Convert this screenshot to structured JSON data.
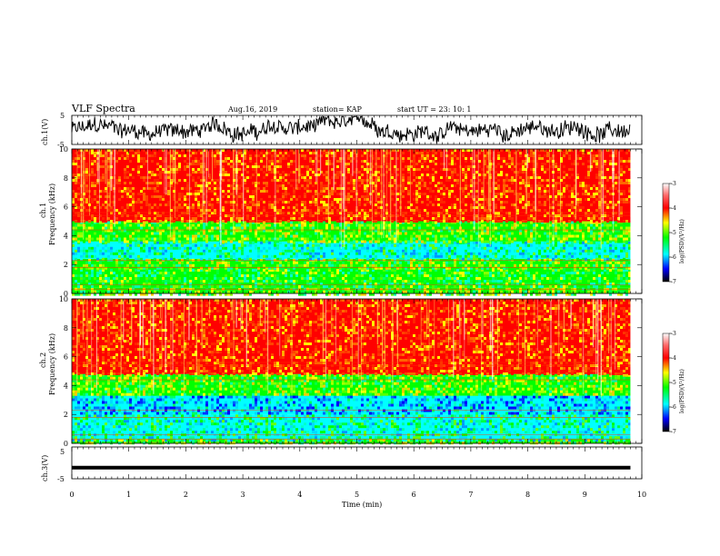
{
  "header": {
    "title": "VLF Spectra",
    "date": "Aug.16, 2019",
    "station": "station= KAP",
    "start_ut": "start  UT  =   23: 10: 1"
  },
  "chart_data": [
    {
      "type": "line",
      "name": "ch1-waveform",
      "ylabel": "ch.1(V)",
      "ylim": [
        -5,
        5
      ],
      "ytick_labels": [
        "-5",
        "5"
      ],
      "xlim": [
        0,
        10
      ],
      "description_values": {
        "approx_mean": 0,
        "approx_range": [
          -4,
          4
        ]
      },
      "color": "#000000"
    },
    {
      "type": "heatmap",
      "name": "ch1-spectrogram",
      "ylabel": "ch.1\nFrequency (kHz)",
      "ylim": [
        0,
        10
      ],
      "ytick_labels": [
        "0",
        "2",
        "4",
        "6",
        "8",
        "10"
      ],
      "xlim": [
        0,
        9.8
      ],
      "bands": [
        {
          "from": 0,
          "to": 0.4,
          "level": "green-yellow"
        },
        {
          "from": 0.4,
          "to": 1.7,
          "level": "green"
        },
        {
          "from": 1.7,
          "to": 2.4,
          "level": "green-yellow"
        },
        {
          "from": 2.4,
          "to": 3.6,
          "level": "cyan-green"
        },
        {
          "from": 3.6,
          "to": 5.0,
          "level": "green-yellow"
        },
        {
          "from": 5.0,
          "to": 10,
          "level": "red-orange"
        }
      ],
      "colorbar": {
        "label": "log(PSD)(V²/Hz)",
        "range": [
          -7,
          -3
        ],
        "ticks": [
          "-3",
          "-4",
          "-5",
          "-6",
          "-7"
        ]
      }
    },
    {
      "type": "heatmap",
      "name": "ch2-spectrogram",
      "ylabel": "ch.2\nFrequency (kHz)",
      "ylim": [
        0,
        10
      ],
      "ytick_labels": [
        "0",
        "2",
        "4",
        "6",
        "8",
        "10"
      ],
      "xlim": [
        0,
        9.8
      ],
      "bands": [
        {
          "from": 0,
          "to": 0.3,
          "level": "green-yellow"
        },
        {
          "from": 0.3,
          "to": 2.0,
          "level": "cyan-green"
        },
        {
          "from": 2.0,
          "to": 3.3,
          "level": "blue-cyan"
        },
        {
          "from": 3.3,
          "to": 4.8,
          "level": "green-yellow"
        },
        {
          "from": 4.8,
          "to": 10,
          "level": "red-orange"
        }
      ],
      "colorbar": {
        "label": "log(PSD)(V²/Hz)",
        "range": [
          -7,
          -3
        ],
        "ticks": [
          "-3",
          "-4",
          "-5",
          "-6",
          "-7"
        ]
      }
    },
    {
      "type": "line",
      "name": "ch3-waveform",
      "ylabel": "ch.3(V)",
      "ylim": [
        -5,
        5
      ],
      "ytick_labels": [
        "-5",
        "5"
      ],
      "xlim": [
        0,
        9.8
      ],
      "x": [
        0,
        9.8
      ],
      "y": [
        -1.5,
        -1.5
      ],
      "color": "#000000"
    }
  ],
  "x_axis": {
    "label": "Time  (min)",
    "ticks": [
      "0",
      "1",
      "2",
      "3",
      "4",
      "5",
      "6",
      "7",
      "8",
      "9",
      "10"
    ],
    "range": [
      0,
      10
    ]
  },
  "colorbar_ticks": [
    "-3",
    "-4",
    "-5",
    "-6",
    "-7"
  ],
  "colorbar_label": "log(PSD)(V²/Hz)"
}
